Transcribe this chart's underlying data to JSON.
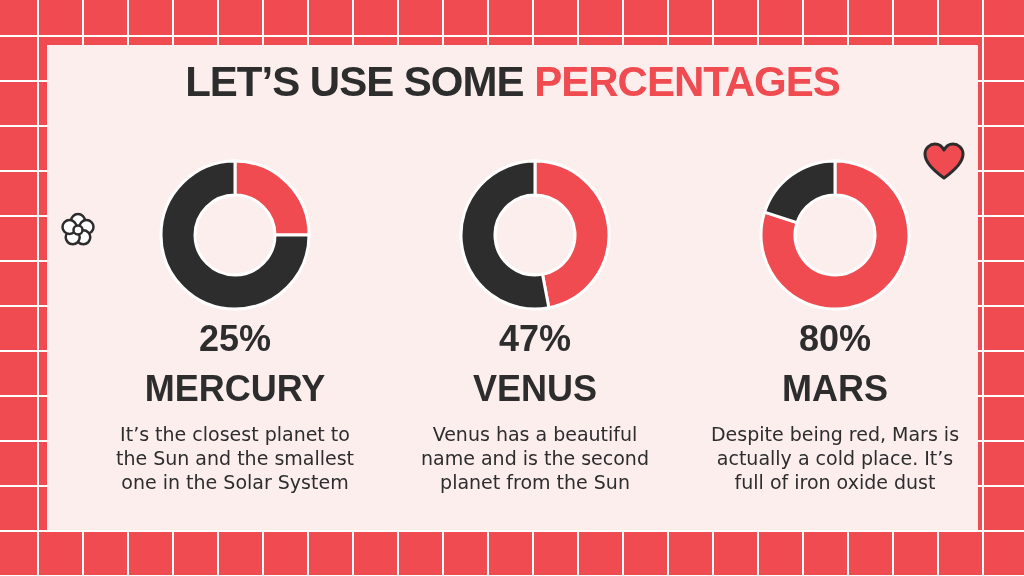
{
  "chart_data": [
    {
      "type": "other",
      "title": "LET’S USE SOME PERCENTAGES"
    },
    {
      "type": "donut",
      "title": "MERCURY",
      "categories": [
        null,
        null
      ],
      "values": [
        25,
        75
      ],
      "colors": [
        "#ef4b50",
        "#2d2d2d"
      ],
      "annotations": [
        "25%",
        "It’s the closest planet to\nthe Sun and the smallest\none in the Solar System"
      ]
    },
    {
      "type": "donut",
      "title": "VENUS",
      "categories": [
        null,
        null
      ],
      "values": [
        47,
        53
      ],
      "colors": [
        "#ef4b50",
        "#2d2d2d"
      ],
      "annotations": [
        "47%",
        "Venus has a beautiful\nname and is the second\nplanet from the Sun"
      ]
    },
    {
      "type": "donut",
      "title": "MARS",
      "categories": [
        null,
        null
      ],
      "values": [
        80,
        20
      ],
      "colors": [
        "#ef4b50",
        "#2d2d2d"
      ],
      "annotations": [
        "80%",
        "Despite being red, Mars is\nactually a cold place. It’s\nfull of iron oxide dust"
      ]
    }
  ]
}
